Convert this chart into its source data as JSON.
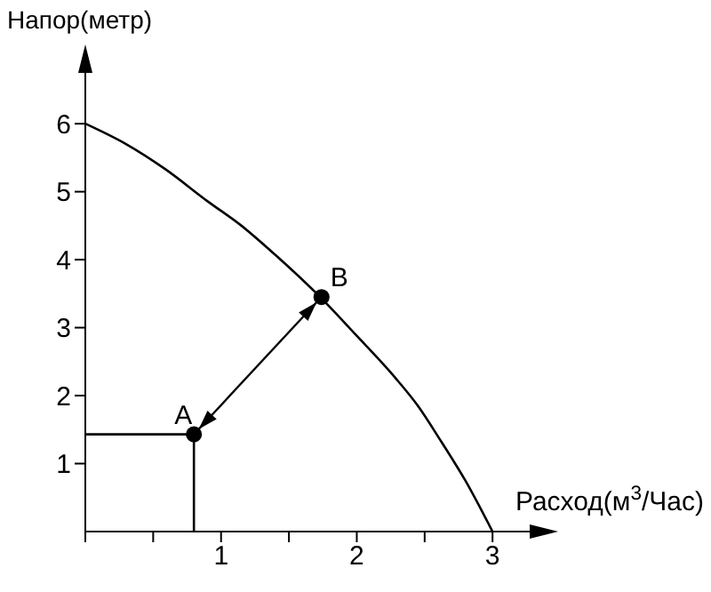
{
  "chart_data": {
    "type": "line",
    "xlabel": "Расход(м$^{3}$/Час)",
    "ylabel": "Напор(метр)",
    "xlim": [
      0,
      3.3
    ],
    "ylim": [
      0,
      6.8
    ],
    "xticks": [
      {
        "value": 0,
        "label": null
      },
      {
        "value": 0.5,
        "label": null
      },
      1,
      {
        "value": 1.5,
        "label": null
      },
      2,
      {
        "value": 2.5,
        "label": null
      },
      3
    ],
    "yticks": [
      1,
      2,
      3,
      4,
      5,
      6
    ],
    "grid": false,
    "line_style": "solid",
    "series": [
      {
        "color": "#000000",
        "marker": "none",
        "x": [
          0,
          0.3,
          0.59,
          0.9,
          1.15,
          1.4,
          1.73,
          1.99,
          2.28,
          2.45,
          2.62,
          2.8,
          3
        ],
        "values": [
          6,
          5.7,
          5.33,
          4.86,
          4.5,
          4.07,
          3.45,
          2.9,
          2.27,
          1.85,
          1.33,
          0.75,
          0
        ]
      },
      {
        "color": "#000000",
        "marker": "none",
        "x": [
          0,
          0.8,
          0.8
        ],
        "values": [
          1.43,
          1.43,
          0
        ]
      },
      {
        "type": "scatter",
        "color": "#000000",
        "marker": "circle",
        "x": [
          0.8,
          1.74
        ],
        "values": [
          1.43,
          3.45
        ]
      }
    ],
    "annotations": [
      {
        "text": "A",
        "x": 0.8,
        "y": 1.43
      },
      {
        "text": "B",
        "x": 1.74,
        "y": 3.45
      }
    ]
  }
}
